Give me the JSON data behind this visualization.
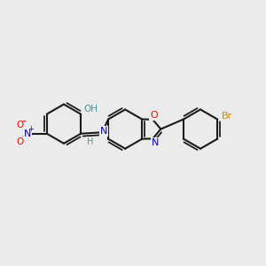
{
  "bg_color": "#ebebeb",
  "bond_color": "#1a1a1a",
  "bond_width": 1.5,
  "atom_colors": {
    "O": "#ff0000",
    "N": "#0000cc",
    "Br": "#cc8800",
    "H_teal": "#4a9a9a",
    "NO2_N": "#0000cc",
    "NO2_O": "#ff0000"
  },
  "figsize": [
    3.0,
    3.0
  ],
  "dpi": 100
}
